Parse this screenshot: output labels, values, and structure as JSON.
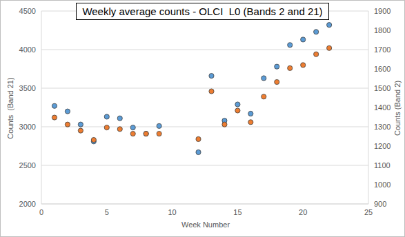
{
  "chart_data": {
    "type": "scatter",
    "title": "Weekly average counts - OLCI  L0 (Bands 2 and 21)",
    "x_label": "Week Number",
    "y_label": "Counts  (Band 21)",
    "y2_label": "Counts (Band 2)",
    "xlim": [
      0,
      25
    ],
    "xticks": [
      0,
      5,
      10,
      15,
      20,
      25
    ],
    "ylim": [
      2000,
      4500
    ],
    "yticks": [
      2000,
      2500,
      3000,
      3500,
      4000,
      4500
    ],
    "y2lim": [
      900,
      1900
    ],
    "y2ticks": [
      900,
      1000,
      1100,
      1200,
      1300,
      1400,
      1500,
      1600,
      1700,
      1800,
      1900
    ],
    "grid": true,
    "x": [
      1,
      2,
      3,
      4,
      5,
      6,
      7,
      8,
      9,
      12,
      13,
      14,
      15,
      16,
      17,
      18,
      19,
      20,
      21,
      22
    ],
    "series": [
      {
        "color": "#5b9bd5",
        "marker": "circle",
        "axis": "y",
        "values": [
          3270,
          3200,
          3030,
          2810,
          3130,
          3110,
          2990,
          2910,
          3010,
          2670,
          3660,
          3080,
          3290,
          3170,
          3630,
          3780,
          4060,
          4130,
          4230,
          4320
        ]
      },
      {
        "color": "#ed7d31",
        "marker": "circle",
        "axis": "y2",
        "values": [
          1348,
          1312,
          1280,
          1232,
          1296,
          1288,
          1264,
          1264,
          1264,
          1236,
          1484,
          1312,
          1384,
          1324,
          1456,
          1532,
          1604,
          1620,
          1676,
          1708
        ]
      }
    ]
  }
}
